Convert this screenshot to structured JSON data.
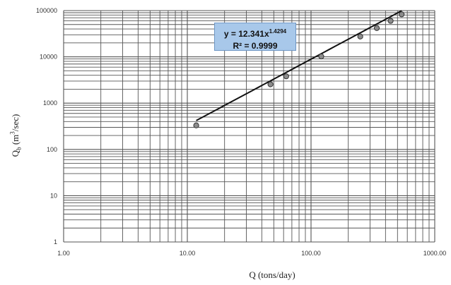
{
  "chart_data": {
    "type": "scatter",
    "xscale": "log",
    "yscale": "log",
    "xlim": [
      1,
      1000
    ],
    "ylim": [
      1,
      100000
    ],
    "xticks": [
      "1.00",
      "10.00",
      "100.00",
      "1000.00"
    ],
    "yticks": [
      "1",
      "10",
      "100",
      "1000",
      "10000",
      "100000"
    ],
    "xlabel": "Q (tons/day)",
    "ylabel_main": "Q",
    "ylabel_sub": "b",
    "ylabel_unit_pre": " (m",
    "ylabel_unit_sup": "3",
    "ylabel_unit_post": "/sec)",
    "grid": true,
    "series": [
      {
        "x": [
          11.8,
          47,
          63,
          121,
          250,
          340,
          440,
          540
        ],
        "y": [
          330,
          2550,
          3800,
          10200,
          27500,
          42000,
          60000,
          83000
        ]
      }
    ],
    "trendline": {
      "coef": 12.341,
      "exp": 1.4294,
      "x_range": [
        11.8,
        540
      ],
      "equation_prefix": "y = 12.341x",
      "equation_exp": "1.4294",
      "r2_text": "R² = 0.9999"
    },
    "colors": {
      "line": "#111111",
      "marker_fill": "#8c8c8c",
      "marker_stroke": "#333333",
      "grid": "#555555"
    }
  }
}
